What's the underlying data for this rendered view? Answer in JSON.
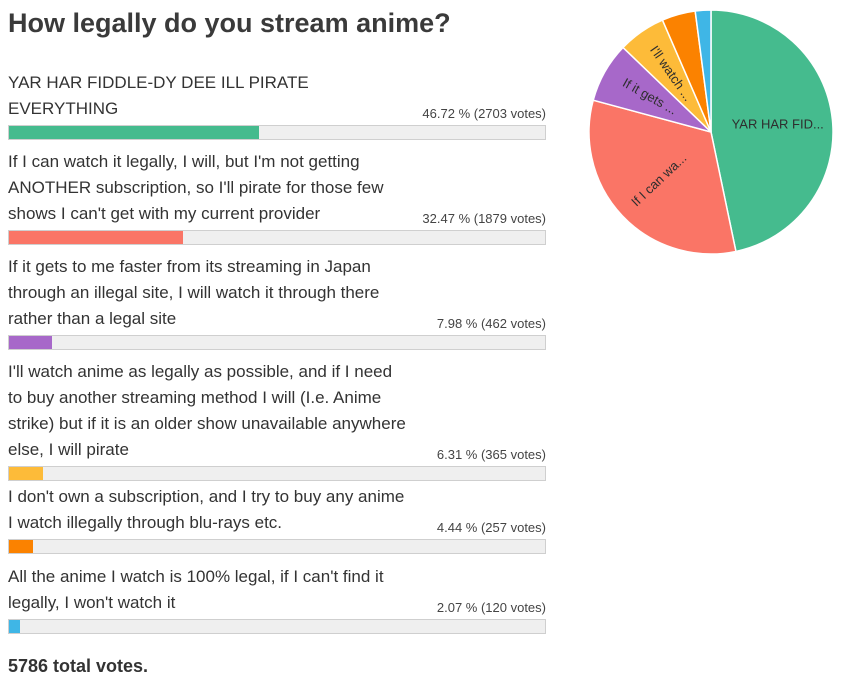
{
  "poll": {
    "title": "How legally do you stream anime?",
    "total_votes_text": "5786 total votes."
  },
  "chart_data": {
    "type": "bar",
    "title": "How legally do you stream anime?",
    "categories": [
      "YAR HAR FIDDLE-DY DEE ILL PIRATE EVERYTHING",
      "If I can watch it legally, I will, but I'm not getting ANOTHER subscription, so I'll pirate for those few shows I can't get with my current provider",
      "If it gets to me faster from its streaming in Japan through an illegal site, I will watch it through there rather than a legal site",
      "I'll watch anime as legally as possible, and if I need to buy another streaming method I will (I.e. Anime strike) but if it is an older show unavailable anywhere else, I will pirate",
      "I don't own a subscription, and I try to buy any anime I watch illegally through blu-rays etc.",
      "All the anime I watch is 100% legal, if I can't find it legally, I won't watch it"
    ],
    "values": [
      46.72,
      32.47,
      7.98,
      6.31,
      4.44,
      2.07
    ],
    "votes": [
      2703,
      1879,
      462,
      365,
      257,
      120
    ],
    "value_labels": [
      "46.72 % (2703 votes)",
      "32.47 % (1879 votes)",
      "7.98 % (462 votes)",
      "6.31 % (365 votes)",
      "4.44 % (257 votes)",
      "2.07 % (120 votes)"
    ],
    "colors": [
      "#45bb8e",
      "#fa7566",
      "#a768c9",
      "#fdbb39",
      "#fb8200",
      "#3fb6e6"
    ],
    "ylim": [
      0,
      100
    ],
    "total_votes": 5786,
    "pie": {
      "type": "pie",
      "slice_labels": [
        "YAR HAR FID...",
        "If I can wa...",
        "If it gets ...",
        "I'll watch ...",
        "",
        ""
      ],
      "values": [
        46.72,
        32.47,
        7.98,
        6.31,
        4.44,
        2.07
      ]
    }
  }
}
